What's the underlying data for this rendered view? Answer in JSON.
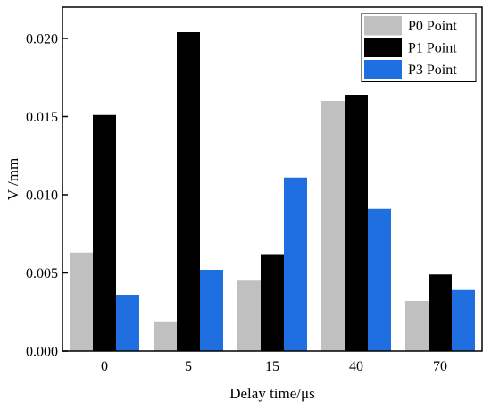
{
  "chart_data": {
    "type": "bar",
    "xlabel": "Delay time/μs",
    "ylabel": "V /mm",
    "categories": [
      "0",
      "5",
      "15",
      "40",
      "70"
    ],
    "ylim": [
      0,
      0.022
    ],
    "yticks": [
      "0.000",
      "0.005",
      "0.010",
      "0.015",
      "0.020"
    ],
    "ytick_values": [
      0,
      0.005,
      0.01,
      0.015,
      0.02
    ],
    "grid": false,
    "legend_position": "top-right",
    "series": [
      {
        "name": "P0 Point",
        "color": "#c0c0c0",
        "values": [
          0.0063,
          0.0019,
          0.0045,
          0.016,
          0.0032
        ]
      },
      {
        "name": "P1 Point",
        "color": "#000000",
        "values": [
          0.0151,
          0.0204,
          0.0062,
          0.0164,
          0.0049
        ]
      },
      {
        "name": "P3 Point",
        "color": "#1f6fe0",
        "values": [
          0.0036,
          0.0052,
          0.0111,
          0.0091,
          0.0039
        ]
      }
    ]
  }
}
